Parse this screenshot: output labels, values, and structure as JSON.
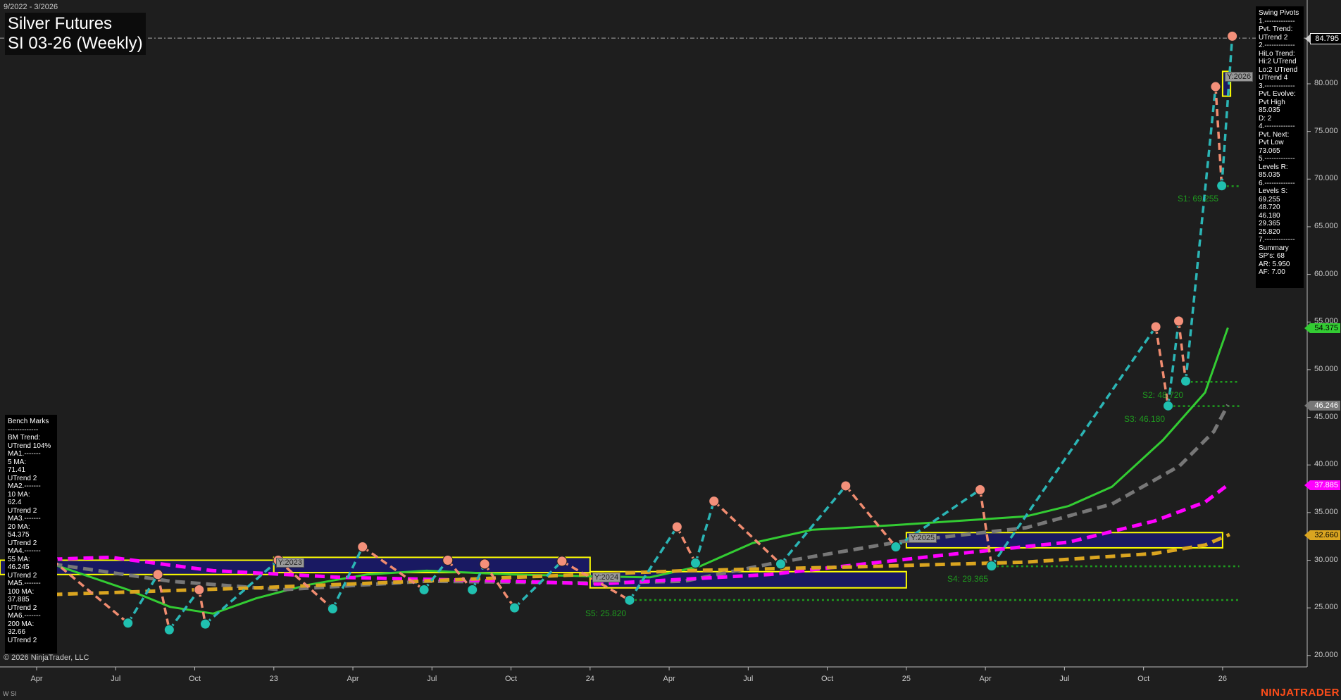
{
  "header": {
    "date_range": "9/2022 - 3/2026",
    "title": "Silver Futures",
    "subtitle": "SI 03-26 (Weekly)"
  },
  "swing_pivots_panel": {
    "lines": [
      "Swing Pivots",
      "1.-------------",
      "Pvt. Trend:",
      "UTrend 2",
      "2.-------------",
      "HiLo Trend:",
      "Hi:2 UTrend",
      "Lo:2 UTrend",
      "UTrend 4",
      "3.-------------",
      "Pvt. Evolve:",
      "Pvt High",
      "85.035",
      "D: 2",
      "4.-------------",
      "Pvt. Next:",
      "Pvt Low",
      "73.065",
      "5.-------------",
      "Levels R:",
      "85.035",
      "6.-------------",
      "Levels S:",
      "69.255",
      "48.720",
      "46.180",
      "29.365",
      "25.820",
      "7.-------------",
      "Summary",
      "SP's: 68",
      "AR: 5.950",
      "AF: 7.00"
    ]
  },
  "bench_marks_panel": {
    "lines": [
      "Bench Marks",
      "-------------",
      "BM Trend:",
      "UTrend 104%",
      "MA1.-------",
      "5 MA:",
      "71.41",
      "UTrend 2",
      "MA2.-------",
      "10 MA:",
      "62.4",
      "UTrend 2",
      "MA3.-------",
      "20 MA:",
      "54.375",
      "UTrend 2",
      "MA4.-------",
      "55 MA:",
      "46.245",
      "UTrend 2",
      "MA5.-------",
      "100 MA:",
      "37.885",
      "UTrend 2",
      "MA6.-------",
      "200 MA:",
      "32.66",
      "UTrend 2"
    ]
  },
  "footer": {
    "copyright": "© 2026 NinjaTrader, LLC",
    "instrument_tag": "W SI",
    "brand": "NINJATRADER"
  },
  "price_markers": [
    {
      "value": "84.795",
      "color": "#000000",
      "text_color": "#ffffff"
    },
    {
      "value": "54.375",
      "color": "#33cc33",
      "text_color": "#000000"
    },
    {
      "value": "46.246",
      "color": "#777777",
      "text_color": "#ffffff"
    },
    {
      "value": "37.885",
      "color": "#ff00ff",
      "text_color": "#ffffff"
    },
    {
      "value": "32.660",
      "color": "#daa520",
      "text_color": "#000000"
    }
  ],
  "chart_data": {
    "type": "line",
    "title": "Silver Futures SI 03-26 (Weekly)",
    "ylim": [
      18,
      87
    ],
    "y_ticks": [
      "20.000",
      "25.000",
      "30.000",
      "35.000",
      "40.000",
      "45.000",
      "50.000",
      "55.000",
      "60.000",
      "65.000",
      "70.000",
      "75.000",
      "80.000"
    ],
    "x_ticks": [
      {
        "date": "2022-04-01",
        "label": "Apr"
      },
      {
        "date": "2022-07-01",
        "label": "Jul"
      },
      {
        "date": "2022-10-01",
        "label": "Oct"
      },
      {
        "date": "2023-01-01",
        "label": "23"
      },
      {
        "date": "2023-04-01",
        "label": "Apr"
      },
      {
        "date": "2023-07-01",
        "label": "Jul"
      },
      {
        "date": "2023-10-01",
        "label": "Oct"
      },
      {
        "date": "2024-01-01",
        "label": "24"
      },
      {
        "date": "2024-04-01",
        "label": "Apr"
      },
      {
        "date": "2024-07-01",
        "label": "Jul"
      },
      {
        "date": "2024-10-01",
        "label": "Oct"
      },
      {
        "date": "2025-01-01",
        "label": "25"
      },
      {
        "date": "2025-04-01",
        "label": "Apr"
      },
      {
        "date": "2025-07-01",
        "label": "Jul"
      },
      {
        "date": "2025-10-01",
        "label": "Oct"
      },
      {
        "date": "2026-01-01",
        "label": "26"
      }
    ],
    "resistance_line": {
      "value": 84.795,
      "color": "#aaaaaa"
    },
    "swing_pivots": [
      {
        "date": "2022-04-19",
        "price": 30.0,
        "type": "H"
      },
      {
        "date": "2022-07-15",
        "price": 23.4,
        "type": "L"
      },
      {
        "date": "2022-08-19",
        "price": 28.5,
        "type": "H"
      },
      {
        "date": "2022-09-02",
        "price": 22.7,
        "type": "L"
      },
      {
        "date": "2022-10-06",
        "price": 26.9,
        "type": "H"
      },
      {
        "date": "2022-10-13",
        "price": 23.3,
        "type": "L"
      },
      {
        "date": "2023-01-06",
        "price": 30.0,
        "type": "H"
      },
      {
        "date": "2023-03-08",
        "price": 24.9,
        "type": "L"
      },
      {
        "date": "2023-04-12",
        "price": 31.4,
        "type": "H"
      },
      {
        "date": "2023-06-22",
        "price": 26.9,
        "type": "L"
      },
      {
        "date": "2023-07-19",
        "price": 30.0,
        "type": "H"
      },
      {
        "date": "2023-08-17",
        "price": 26.9,
        "type": "L"
      },
      {
        "date": "2023-09-01",
        "price": 29.6,
        "type": "H"
      },
      {
        "date": "2023-10-05",
        "price": 25.0,
        "type": "L"
      },
      {
        "date": "2023-11-29",
        "price": 29.9,
        "type": "H"
      },
      {
        "date": "2024-02-16",
        "price": 25.8,
        "type": "L"
      },
      {
        "date": "2024-04-10",
        "price": 33.5,
        "type": "H"
      },
      {
        "date": "2024-05-01",
        "price": 29.7,
        "type": "L"
      },
      {
        "date": "2024-05-22",
        "price": 36.2,
        "type": "H"
      },
      {
        "date": "2024-08-08",
        "price": 29.6,
        "type": "L"
      },
      {
        "date": "2024-10-22",
        "price": 37.8,
        "type": "H"
      },
      {
        "date": "2024-12-19",
        "price": 31.4,
        "type": "L"
      },
      {
        "date": "2025-03-25",
        "price": 37.4,
        "type": "H"
      },
      {
        "date": "2025-04-08",
        "price": 29.4,
        "type": "L"
      },
      {
        "date": "2025-10-15",
        "price": 54.5,
        "type": "H"
      },
      {
        "date": "2025-10-29",
        "price": 46.2,
        "type": "L"
      },
      {
        "date": "2025-11-11",
        "price": 55.1,
        "type": "H"
      },
      {
        "date": "2025-11-19",
        "price": 48.8,
        "type": "L"
      },
      {
        "date": "2025-12-23",
        "price": 79.7,
        "type": "H"
      },
      {
        "date": "2025-12-30",
        "price": 69.3,
        "type": "L"
      },
      {
        "date": "2026-01-12",
        "price": 85.0,
        "type": "H"
      }
    ],
    "series": [
      {
        "name": "20 MA",
        "color": "#33cc33",
        "dash": false,
        "points": [
          [
            "2022-04-19",
            29.6
          ],
          [
            "2022-07-15",
            26.9
          ],
          [
            "2022-09-03",
            25.1
          ],
          [
            "2022-10-22",
            24.4
          ],
          [
            "2022-12-11",
            26.0
          ],
          [
            "2023-02-09",
            27.4
          ],
          [
            "2023-04-17",
            28.5
          ],
          [
            "2023-06-25",
            28.9
          ],
          [
            "2023-10-03",
            28.5
          ],
          [
            "2024-01-10",
            28.3
          ],
          [
            "2024-03-09",
            28.2
          ],
          [
            "2024-05-07",
            29.4
          ],
          [
            "2024-07-06",
            31.8
          ],
          [
            "2024-09-14",
            33.2
          ],
          [
            "2024-12-21",
            33.7
          ],
          [
            "2025-03-29",
            34.3
          ],
          [
            "2025-05-17",
            34.6
          ],
          [
            "2025-07-06",
            35.7
          ],
          [
            "2025-08-25",
            37.7
          ],
          [
            "2025-10-23",
            42.6
          ],
          [
            "2025-12-11",
            47.6
          ],
          [
            "2026-01-07",
            54.4
          ]
        ]
      },
      {
        "name": "55 MA",
        "color": "#777777",
        "dash": true,
        "points": [
          [
            "2022-04-19",
            29.6
          ],
          [
            "2022-09-03",
            27.8
          ],
          [
            "2023-01-10",
            26.9
          ],
          [
            "2023-06-25",
            27.8
          ],
          [
            "2024-01-10",
            27.6
          ],
          [
            "2024-04-18",
            27.8
          ],
          [
            "2024-07-25",
            29.6
          ],
          [
            "2024-12-21",
            31.9
          ],
          [
            "2025-05-17",
            33.4
          ],
          [
            "2025-08-25",
            35.9
          ],
          [
            "2025-11-12",
            39.9
          ],
          [
            "2025-12-21",
            43.5
          ],
          [
            "2026-01-07",
            46.3
          ]
        ]
      },
      {
        "name": "100 MA",
        "color": "#ff00ff",
        "dash": true,
        "points": [
          [
            "2022-04-19",
            30.1
          ],
          [
            "2022-06-25",
            30.3
          ],
          [
            "2022-10-22",
            28.9
          ],
          [
            "2023-03-18",
            28.2
          ],
          [
            "2023-10-03",
            27.8
          ],
          [
            "2024-01-10",
            27.5
          ],
          [
            "2024-07-25",
            28.5
          ],
          [
            "2025-02-10",
            30.5
          ],
          [
            "2025-07-06",
            31.9
          ],
          [
            "2025-10-13",
            34.1
          ],
          [
            "2025-12-11",
            36.1
          ],
          [
            "2026-01-07",
            37.9
          ]
        ]
      },
      {
        "name": "200 MA",
        "color": "#daa520",
        "dash": true,
        "points": [
          [
            "2022-04-19",
            26.4
          ],
          [
            "2022-12-11",
            27.1
          ],
          [
            "2023-10-03",
            28.2
          ],
          [
            "2024-04-18",
            28.9
          ],
          [
            "2024-11-02",
            29.3
          ],
          [
            "2025-05-17",
            29.8
          ],
          [
            "2025-10-13",
            30.7
          ],
          [
            "2025-12-11",
            31.6
          ],
          [
            "2026-01-09",
            32.7
          ]
        ]
      }
    ],
    "year_boxes": [
      {
        "label": "",
        "start": "2022-01-01",
        "end": "2022-12-31",
        "high": 30.0,
        "low": 28.5
      },
      {
        "label": "Y:2023",
        "start": "2023-01-01",
        "end": "2023-12-31",
        "high": 30.3,
        "low": 28.7
      },
      {
        "label": "Y:2024",
        "start": "2024-01-01",
        "end": "2024-12-31",
        "high": 28.8,
        "low": 27.1
      },
      {
        "label": "Y:2025",
        "start": "2025-01-01",
        "end": "2025-12-31",
        "high": 32.9,
        "low": 31.3
      },
      {
        "label": "Y:2026",
        "start": "2026-01-01",
        "end": "2026-01-10",
        "high": 81.3,
        "low": 78.7
      }
    ],
    "support_levels": [
      {
        "label": "S1: 69.255",
        "value": 69.255,
        "start": "2025-12-30"
      },
      {
        "label": "S2: 48.720",
        "value": 48.72,
        "start": "2025-11-19"
      },
      {
        "label": "S3: 46.180",
        "value": 46.18,
        "start": "2025-10-29"
      },
      {
        "label": "S4: 29.365",
        "value": 29.365,
        "start": "2025-04-08"
      },
      {
        "label": "S5: 25.820",
        "value": 25.82,
        "start": "2024-02-16"
      }
    ]
  }
}
